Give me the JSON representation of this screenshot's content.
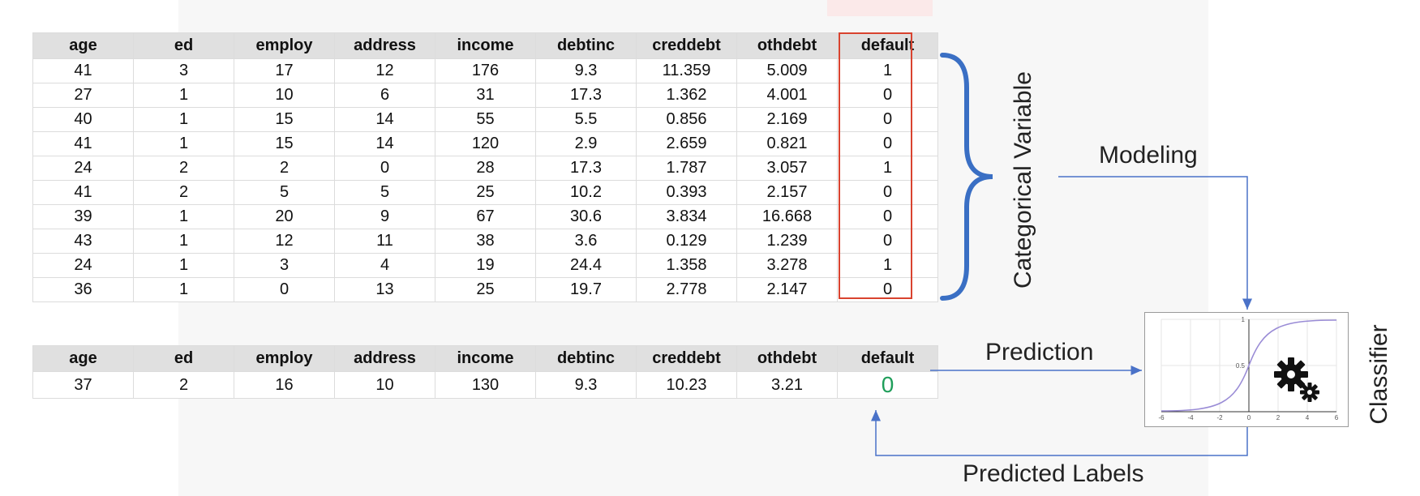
{
  "headers": [
    "age",
    "ed",
    "employ",
    "address",
    "income",
    "debtinc",
    "creddebt",
    "othdebt",
    "default"
  ],
  "train_rows": [
    [
      "41",
      "3",
      "17",
      "12",
      "176",
      "9.3",
      "11.359",
      "5.009",
      "1"
    ],
    [
      "27",
      "1",
      "10",
      "6",
      "31",
      "17.3",
      "1.362",
      "4.001",
      "0"
    ],
    [
      "40",
      "1",
      "15",
      "14",
      "55",
      "5.5",
      "0.856",
      "2.169",
      "0"
    ],
    [
      "41",
      "1",
      "15",
      "14",
      "120",
      "2.9",
      "2.659",
      "0.821",
      "0"
    ],
    [
      "24",
      "2",
      "2",
      "0",
      "28",
      "17.3",
      "1.787",
      "3.057",
      "1"
    ],
    [
      "41",
      "2",
      "5",
      "5",
      "25",
      "10.2",
      "0.393",
      "2.157",
      "0"
    ],
    [
      "39",
      "1",
      "20",
      "9",
      "67",
      "30.6",
      "3.834",
      "16.668",
      "0"
    ],
    [
      "43",
      "1",
      "12",
      "11",
      "38",
      "3.6",
      "0.129",
      "1.239",
      "0"
    ],
    [
      "24",
      "1",
      "3",
      "4",
      "19",
      "24.4",
      "1.358",
      "3.278",
      "1"
    ],
    [
      "36",
      "1",
      "0",
      "13",
      "25",
      "19.7",
      "2.778",
      "2.147",
      "0"
    ]
  ],
  "test_row": [
    "37",
    "2",
    "16",
    "10",
    "130",
    "9.3",
    "10.23",
    "3.21"
  ],
  "predicted_value": "0",
  "labels": {
    "categorical": "Categorical Variable",
    "modeling": "Modeling",
    "prediction": "Prediction",
    "predicted_labels": "Predicted Labels",
    "classifier": "Classifier"
  },
  "classifier_plot": {
    "x_ticks": [
      "-6",
      "-4",
      "-2",
      "0",
      "2",
      "4",
      "6"
    ],
    "y_ticks": [
      "1",
      "0.5"
    ],
    "curve": "sigmoid",
    "icon": "gears-icon"
  },
  "colors": {
    "header_bg": "#e0e0e0",
    "highlight_border": "#d9432f",
    "brace": "#3a6fc4",
    "arrow": "#4a72c8",
    "prediction_value": "#1f9e5a",
    "curve": "#9a8cd6"
  }
}
